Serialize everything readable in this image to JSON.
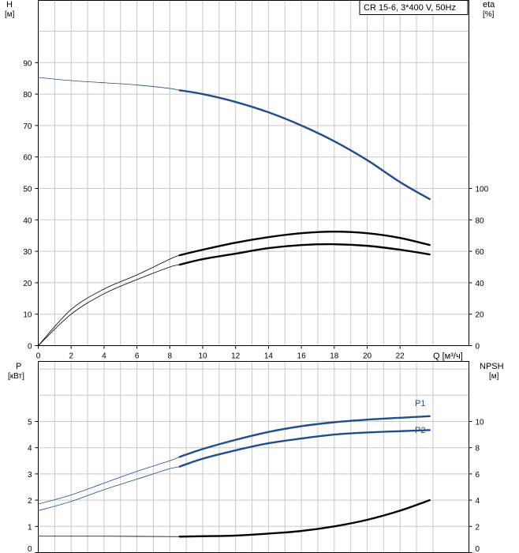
{
  "chart_data": [
    {
      "type": "line",
      "panel": "top",
      "title": "CR 15-6, 3*400 V, 50Hz",
      "ylabel_left": "H",
      "ylabel_left_unit": "[м]",
      "ylabel_right": "eta",
      "ylabel_right_unit": "[%]",
      "xlabel": "Q [м³/ч]",
      "xlim": [
        0,
        25
      ],
      "ylim_left": [
        0,
        100
      ],
      "ylim_right": [
        0,
        200
      ],
      "x_ticks": [
        "0",
        "2",
        "4",
        "6",
        "8",
        "10",
        "12",
        "14",
        "16",
        "18",
        "20",
        "22"
      ],
      "y_ticks_left": [
        "0",
        "10",
        "20",
        "30",
        "40",
        "50",
        "60",
        "70",
        "80",
        "90"
      ],
      "y_ticks_right": [
        "0",
        "20",
        "40",
        "60",
        "80",
        "100"
      ],
      "grid": true,
      "series": [
        {
          "color": "#1f4e8c",
          "axis": "left",
          "points": [
            [
              0,
              85.3
            ],
            [
              2,
              84.3
            ],
            [
              4,
              83.6
            ],
            [
              6,
              82.9
            ],
            [
              8,
              81.8
            ],
            [
              8.6,
              81.2
            ],
            [
              10,
              80.0
            ],
            [
              12,
              77.5
            ],
            [
              14,
              74.2
            ],
            [
              16,
              70.0
            ],
            [
              18,
              65.0
            ],
            [
              20,
              59.0
            ],
            [
              22,
              52.0
            ],
            [
              23.8,
              46.6
            ]
          ],
          "operating_range_x": [
            8.6,
            23.8
          ]
        },
        {
          "color": "#000000",
          "axis": "right",
          "points": [
            [
              0,
              0
            ],
            [
              2,
              23
            ],
            [
              4,
              36
            ],
            [
              6,
              45
            ],
            [
              8,
              55
            ],
            [
              8.6,
              57.5
            ],
            [
              10,
              61
            ],
            [
              12,
              65.5
            ],
            [
              14,
              69
            ],
            [
              16,
              71.5
            ],
            [
              18,
              72.5
            ],
            [
              20,
              71.5
            ],
            [
              22,
              68.5
            ],
            [
              23.8,
              64
            ]
          ],
          "operating_range_x": [
            8.6,
            23.8
          ]
        },
        {
          "color": "#000000",
          "axis": "right",
          "points": [
            [
              0,
              0
            ],
            [
              2,
              20
            ],
            [
              4,
              33
            ],
            [
              6,
              42
            ],
            [
              8,
              50
            ],
            [
              8.6,
              51.5
            ],
            [
              10,
              55
            ],
            [
              12,
              58.5
            ],
            [
              14,
              62
            ],
            [
              16,
              64
            ],
            [
              18,
              64.5
            ],
            [
              20,
              63.5
            ],
            [
              22,
              61
            ],
            [
              23.8,
              58
            ]
          ],
          "operating_range_x": [
            8.6,
            23.8
          ]
        }
      ]
    },
    {
      "type": "line",
      "panel": "bottom",
      "ylabel_left": "P",
      "ylabel_left_unit": "[кВт]",
      "ylabel_right": "NPSH",
      "ylabel_right_unit": "[м]",
      "xlim": [
        0,
        25
      ],
      "ylim_left": [
        0,
        6
      ],
      "ylim_right": [
        0,
        12
      ],
      "y_ticks_left": [
        "0",
        "1",
        "2",
        "3",
        "4",
        "5"
      ],
      "y_ticks_right": [
        "0",
        "2",
        "4",
        "6",
        "8",
        "10"
      ],
      "grid": true,
      "series": [
        {
          "name": "P1",
          "color": "#1f4e8c",
          "axis": "left",
          "points": [
            [
              0,
              1.85
            ],
            [
              2,
              2.2
            ],
            [
              4,
              2.65
            ],
            [
              6,
              3.1
            ],
            [
              8,
              3.5
            ],
            [
              8.6,
              3.65
            ],
            [
              10,
              3.95
            ],
            [
              12,
              4.3
            ],
            [
              14,
              4.6
            ],
            [
              16,
              4.82
            ],
            [
              18,
              4.97
            ],
            [
              20,
              5.07
            ],
            [
              22,
              5.14
            ],
            [
              23.8,
              5.2
            ]
          ],
          "operating_range_x": [
            8.6,
            23.8
          ]
        },
        {
          "name": "P2",
          "color": "#1f4e8c",
          "axis": "left",
          "points": [
            [
              0,
              1.6
            ],
            [
              2,
              1.95
            ],
            [
              4,
              2.4
            ],
            [
              6,
              2.8
            ],
            [
              8,
              3.2
            ],
            [
              8.6,
              3.28
            ],
            [
              10,
              3.58
            ],
            [
              12,
              3.9
            ],
            [
              14,
              4.17
            ],
            [
              16,
              4.35
            ],
            [
              18,
              4.5
            ],
            [
              20,
              4.58
            ],
            [
              22,
              4.63
            ],
            [
              23.8,
              4.67
            ]
          ],
          "operating_range_x": [
            8.6,
            23.8
          ]
        },
        {
          "color": "#000000",
          "axis": "right",
          "points": [
            [
              0,
              1.25
            ],
            [
              4,
              1.25
            ],
            [
              8.6,
              1.22
            ],
            [
              10,
              1.25
            ],
            [
              12,
              1.3
            ],
            [
              14,
              1.45
            ],
            [
              16,
              1.65
            ],
            [
              18,
              2.0
            ],
            [
              20,
              2.5
            ],
            [
              22,
              3.2
            ],
            [
              23.8,
              4.0
            ]
          ],
          "operating_range_x": [
            8.6,
            23.8
          ]
        }
      ]
    }
  ]
}
